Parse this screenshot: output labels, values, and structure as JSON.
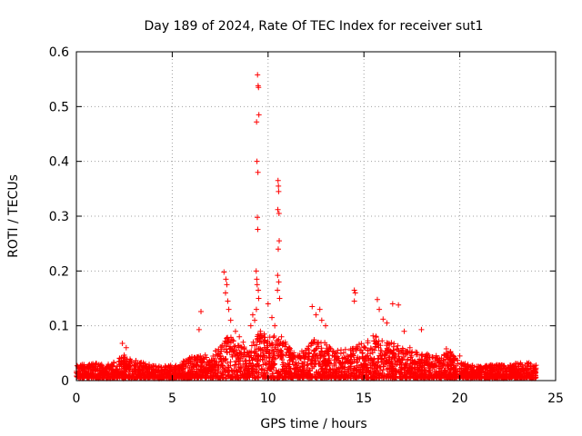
{
  "chart_data": {
    "type": "scatter",
    "title": "Day 189 of 2024, Rate Of TEC Index for receiver sut1",
    "xlabel": "GPS time / hours",
    "ylabel": "ROTI / TECUs",
    "xlim": [
      0,
      25
    ],
    "ylim": [
      0,
      0.6
    ],
    "xticks": [
      "0",
      "5",
      "10",
      "15",
      "20",
      "25"
    ],
    "yticks": [
      "0",
      "0.1",
      "0.2",
      "0.3",
      "0.4",
      "0.5",
      "0.6"
    ],
    "grid": true,
    "marker": "plus",
    "color": "#ff0000",
    "series": [
      {
        "x": [
          9.45,
          9.48,
          9.5,
          9.52,
          9.4,
          9.42,
          9.47,
          9.44,
          9.46,
          9.38,
          9.41,
          9.43,
          9.49,
          9.51,
          9.39,
          10.52,
          10.54,
          10.55,
          10.51,
          10.57,
          10.58,
          10.53,
          10.5,
          10.56,
          10.49,
          10.6,
          7.7,
          7.8,
          7.85,
          7.78,
          7.9,
          7.95,
          8.05,
          8.3,
          8.5,
          8.7,
          9.1,
          9.2,
          9.3,
          9.6,
          9.8,
          10.0,
          10.2,
          10.35,
          10.7,
          10.9,
          11.1,
          6.5,
          6.4,
          2.4,
          2.6,
          12.3,
          12.7,
          12.8,
          12.5,
          13.0,
          14.5,
          14.55,
          14.5,
          15.7,
          15.8,
          16.0,
          16.2,
          16.5,
          16.8,
          17.1,
          17.4,
          18.0,
          19.3,
          19.5,
          20.0,
          23.5,
          23.7
        ],
        "y": [
          0.558,
          0.538,
          0.535,
          0.485,
          0.472,
          0.4,
          0.38,
          0.298,
          0.276,
          0.2,
          0.185,
          0.175,
          0.165,
          0.15,
          0.13,
          0.365,
          0.355,
          0.345,
          0.312,
          0.305,
          0.255,
          0.24,
          0.192,
          0.18,
          0.165,
          0.15,
          0.198,
          0.185,
          0.175,
          0.16,
          0.145,
          0.13,
          0.11,
          0.09,
          0.08,
          0.07,
          0.1,
          0.12,
          0.11,
          0.09,
          0.085,
          0.14,
          0.115,
          0.1,
          0.08,
          0.07,
          0.06,
          0.126,
          0.093,
          0.068,
          0.06,
          0.135,
          0.13,
          0.11,
          0.12,
          0.1,
          0.165,
          0.16,
          0.145,
          0.148,
          0.13,
          0.112,
          0.105,
          0.14,
          0.138,
          0.09,
          0.06,
          0.093,
          0.058,
          0.052,
          0.045,
          0.032,
          0.03
        ]
      }
    ],
    "band_envelope": {
      "hours": [
        0,
        0.5,
        1,
        1.5,
        2,
        2.5,
        3,
        3.5,
        4,
        4.5,
        5,
        5.5,
        6,
        6.5,
        7,
        7.5,
        8,
        8.5,
        9,
        9.5,
        10,
        10.5,
        11,
        11.5,
        12,
        12.5,
        13,
        13.5,
        14,
        14.5,
        15,
        15.5,
        16,
        16.5,
        17,
        17.5,
        18,
        18.5,
        19,
        19.5,
        20,
        20.5,
        21,
        21.5,
        22,
        22.5,
        23,
        23.5,
        24
      ],
      "upper": [
        0.026,
        0.025,
        0.028,
        0.025,
        0.03,
        0.045,
        0.035,
        0.03,
        0.025,
        0.022,
        0.025,
        0.03,
        0.04,
        0.045,
        0.04,
        0.06,
        0.08,
        0.06,
        0.055,
        0.085,
        0.075,
        0.08,
        0.06,
        0.045,
        0.055,
        0.075,
        0.065,
        0.05,
        0.055,
        0.06,
        0.065,
        0.08,
        0.075,
        0.065,
        0.055,
        0.05,
        0.045,
        0.045,
        0.04,
        0.05,
        0.03,
        0.025,
        0.022,
        0.025,
        0.025,
        0.025,
        0.028,
        0.03,
        0.025
      ]
    }
  }
}
